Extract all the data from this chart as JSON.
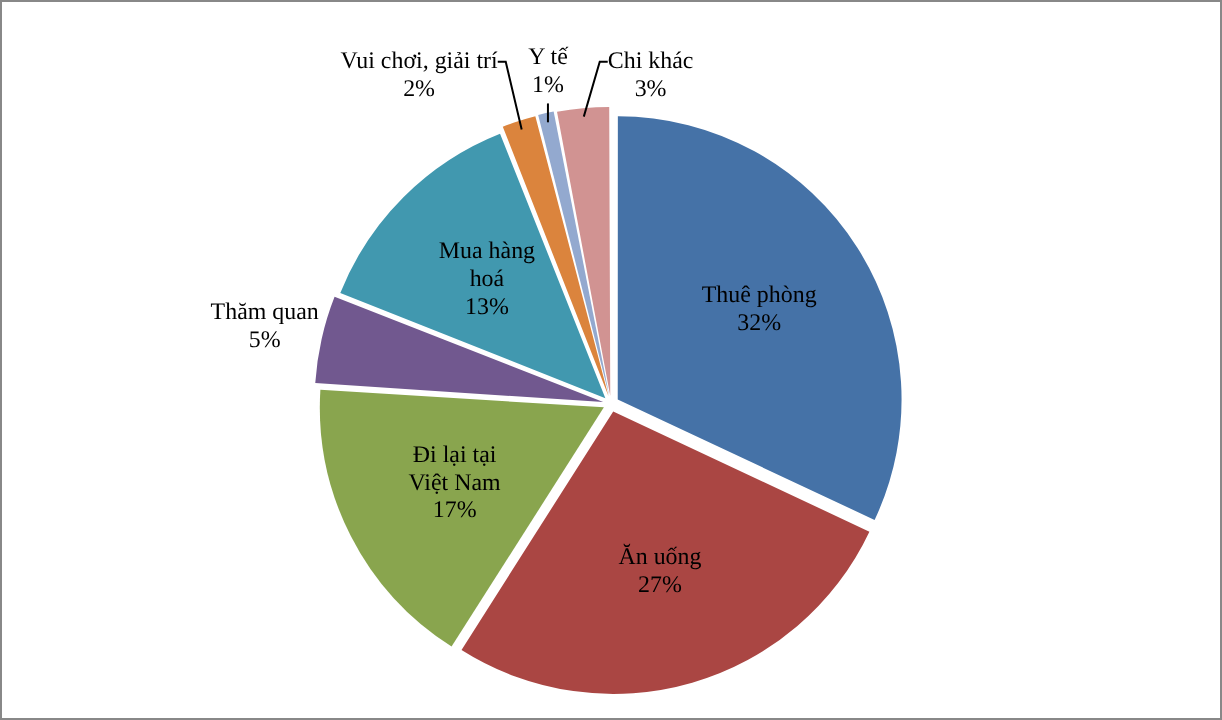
{
  "chart_data": {
    "type": "pie",
    "categories": [
      "Thuê phòng",
      "Ăn uống",
      "Đi lại tại Việt Nam",
      "Thăm quan",
      "Mua hàng hoá",
      "Vui chơi, giải trí",
      "Y tế",
      "Chi khác"
    ],
    "values": [
      32,
      27,
      17,
      5,
      13,
      2,
      1,
      3
    ],
    "value_labels": [
      "32%",
      "27%",
      "17%",
      "5%",
      "13%",
      "2%",
      "1%",
      "3%"
    ],
    "colors": [
      "#4572a7",
      "#aa4643",
      "#89a54e",
      "#71588f",
      "#4198af",
      "#db843d",
      "#93a9cf",
      "#d19392"
    ],
    "legend": false
  }
}
